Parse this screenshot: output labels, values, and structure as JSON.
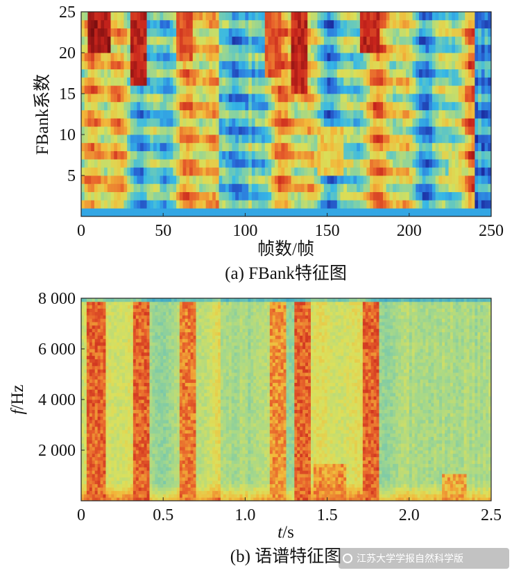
{
  "chart_data": [
    {
      "type": "heatmap",
      "id": "fbank",
      "xlabel": "帧数/帧",
      "ylabel": "FBank系数",
      "caption": "(a) FBank特征图",
      "xlim": [
        0,
        250
      ],
      "ylim": [
        0,
        25
      ],
      "xticks": [
        0,
        50,
        100,
        150,
        200,
        250
      ],
      "xtick_labels": [
        "0",
        "50",
        "100",
        "150",
        "200",
        "250"
      ],
      "yticks": [
        5,
        10,
        15,
        20,
        25
      ],
      "ytick_labels": [
        "5",
        "10",
        "15",
        "20",
        "25"
      ],
      "colormap": [
        "#1a2a9e",
        "#2a6fdc",
        "#36b8e6",
        "#7fd1a8",
        "#d8e05a",
        "#f2b93a",
        "#e8642c",
        "#c8241c",
        "#7a0e10"
      ],
      "hot_segments": [
        {
          "x_start": 5,
          "x_end": 18,
          "y_low": 20,
          "y_high": 25,
          "intensity": 1.0
        },
        {
          "x_start": 30,
          "x_end": 40,
          "y_low": 16,
          "y_high": 25,
          "intensity": 0.95
        },
        {
          "x_start": 59,
          "x_end": 67,
          "y_low": 19,
          "y_high": 25,
          "intensity": 0.85
        },
        {
          "x_start": 112,
          "x_end": 122,
          "y_low": 17,
          "y_high": 25,
          "intensity": 0.85
        },
        {
          "x_start": 128,
          "x_end": 138,
          "y_low": 15,
          "y_high": 25,
          "intensity": 0.95
        },
        {
          "x_start": 170,
          "x_end": 182,
          "y_low": 20,
          "y_high": 25,
          "intensity": 0.95
        },
        {
          "x_start": 145,
          "x_end": 160,
          "y_low": 5,
          "y_high": 11,
          "intensity": 0.65
        },
        {
          "x_start": 225,
          "x_end": 235,
          "y_low": 3,
          "y_high": 7,
          "intensity": 0.6
        }
      ],
      "low_segments": [
        {
          "x_start": 85,
          "x_end": 105,
          "intensity": 0.25
        },
        {
          "x_start": 240,
          "x_end": 250,
          "intensity": 0.1
        }
      ]
    },
    {
      "type": "heatmap",
      "id": "spectrogram",
      "xlabel_italic": "t",
      "xlabel_unit": "/s",
      "ylabel_italic": "f",
      "ylabel_unit": "/Hz",
      "caption": "(b) 语谱特征图",
      "xlim": [
        0,
        2.5
      ],
      "ylim": [
        0,
        8000
      ],
      "xticks": [
        0,
        0.5,
        1.0,
        1.5,
        2.0,
        2.5
      ],
      "xtick_labels": [
        "0",
        "0.5",
        "1.0",
        "1.5",
        "2.0",
        "2.5"
      ],
      "yticks": [
        2000,
        4000,
        6000,
        8000
      ],
      "ytick_labels": [
        "2 000",
        "4 000",
        "6 000",
        "8 000"
      ],
      "colormap": [
        "#3fa8c8",
        "#6cc4b4",
        "#a6d88a",
        "#dbe05c",
        "#f2b93a",
        "#e8642c",
        "#c8241c"
      ],
      "hot_segments": [
        {
          "t_start": 0.03,
          "t_end": 0.15,
          "f_high": 7800,
          "intensity": 0.95
        },
        {
          "t_start": 0.32,
          "t_end": 0.42,
          "f_high": 7800,
          "intensity": 0.95
        },
        {
          "t_start": 0.6,
          "t_end": 0.7,
          "f_high": 7800,
          "intensity": 0.9
        },
        {
          "t_start": 1.15,
          "t_end": 1.25,
          "f_high": 7800,
          "intensity": 0.85
        },
        {
          "t_start": 1.3,
          "t_end": 1.4,
          "f_high": 7800,
          "intensity": 0.95
        },
        {
          "t_start": 1.72,
          "t_end": 1.82,
          "f_high": 7800,
          "intensity": 0.95
        },
        {
          "t_start": 1.42,
          "t_end": 1.62,
          "f_high": 1500,
          "intensity": 0.85
        },
        {
          "t_start": 2.2,
          "t_end": 2.35,
          "f_high": 1000,
          "intensity": 0.8
        }
      ],
      "low_segments": [
        {
          "t_start": 0.85,
          "t_end": 1.05,
          "intensity": 0.3
        },
        {
          "t_start": 2.0,
          "t_end": 2.5,
          "intensity": 0.3
        }
      ]
    }
  ],
  "watermark": "江苏大学学报自然科学版"
}
